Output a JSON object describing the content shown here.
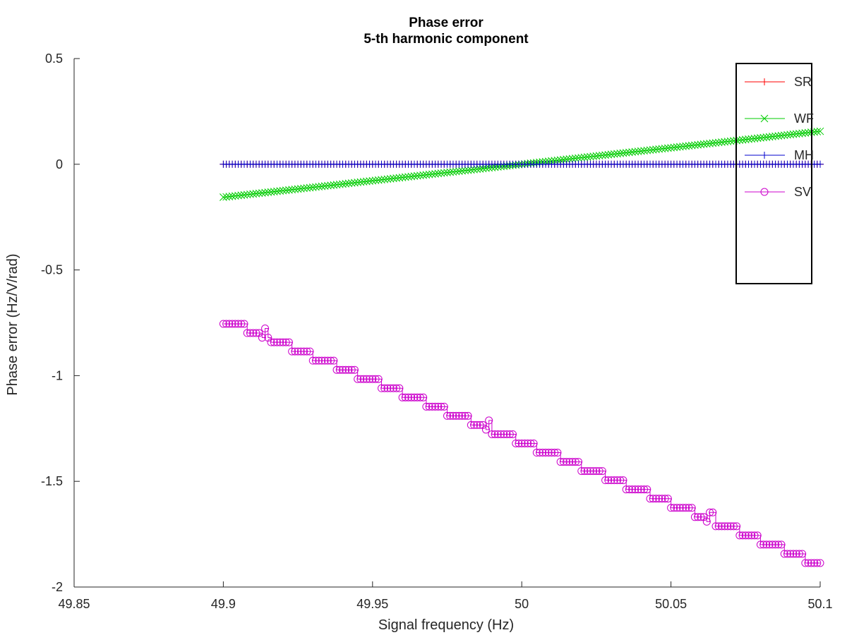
{
  "chart_data": {
    "type": "line",
    "title": "Phase error",
    "subtitle": "5-th harmonic component",
    "xlabel": "Signal frequency (Hz)",
    "ylabel": "Phase error (Hz/V/rad)",
    "xlim": [
      49.85,
      50.1
    ],
    "ylim": [
      -2,
      0.5
    ],
    "xticks": [
      "49.85",
      "49.9",
      "49.95",
      "50",
      "50.05",
      "50.1"
    ],
    "yticks": [
      "0.5",
      "0",
      "-0.5",
      "-1",
      "-1.5",
      "-2"
    ],
    "grid": false,
    "legend_position": "top-right",
    "x_range": {
      "start": 49.9,
      "end": 50.1,
      "step": 0.001
    },
    "series": [
      {
        "name": "SR",
        "color": "#ff0000",
        "marker": "plus",
        "model": "constant",
        "value": 0
      },
      {
        "name": "WF",
        "color": "#00cc00",
        "marker": "cross",
        "model": "linear",
        "value_at_start": -0.156,
        "value_at_end": 0.156
      },
      {
        "name": "MH",
        "color": "#0000cc",
        "marker": "plus",
        "model": "constant",
        "value": 0
      },
      {
        "name": "SV",
        "color": "#cc00cc",
        "marker": "circle",
        "model": "staircase",
        "value_at_start": -0.755,
        "value_at_end": -1.93,
        "step_width": 0.0075,
        "step_count": 27,
        "glitches": [
          49.914,
          49.9885,
          50.063
        ]
      }
    ]
  }
}
